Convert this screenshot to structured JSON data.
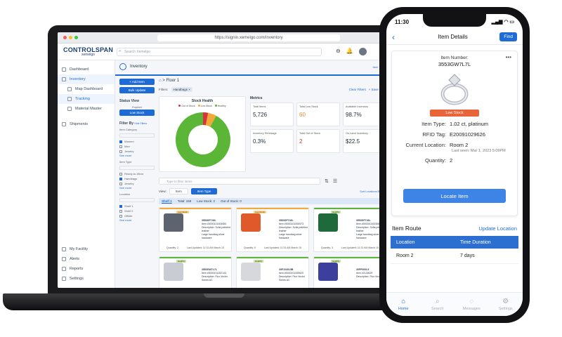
{
  "browser": {
    "url": "https://signin.xemelgo.com/inventory"
  },
  "app": {
    "logo_main": "CONTROLSPAN",
    "logo_sub": "xemelgo",
    "search_placeholder": "Search Xemelgo",
    "page_title": "Inventory",
    "item_type_link": "Item Type"
  },
  "sidebar": {
    "items": [
      {
        "label": "Dashboard"
      },
      {
        "label": "Inventory"
      },
      {
        "label": "Map Dashboard"
      },
      {
        "label": "Tracking"
      },
      {
        "label": "Material Master"
      },
      {
        "label": "Shipments"
      }
    ],
    "bottom": [
      {
        "label": "My Facility"
      },
      {
        "label": "Alerts"
      },
      {
        "label": "Reports"
      },
      {
        "label": "Settings"
      }
    ]
  },
  "filters_col": {
    "add_item": "+ Add Item",
    "bulk_update": "Bulk Update",
    "status_view": "Status View",
    "expired": "Expired",
    "low_stock": "Low Stock",
    "filter_by": "Filter By",
    "hide_filters": "Hide Filters",
    "item_category": "Item Category",
    "categories": [
      "Women",
      "Men",
      "Jewelry"
    ],
    "see_more": "See more",
    "item_type": "Item Type",
    "types": [
      "Ready-to-Wear",
      "Handbags",
      "Jewelry"
    ],
    "location": "Location",
    "locations": [
      "Shelf 1",
      "Shelf 2",
      "Offsite"
    ]
  },
  "content": {
    "breadcrumb": "> Floor 1",
    "filters_label": "Filters:",
    "filter_chip": "Handbags ×",
    "clear_filters": "Clear Filters",
    "save_filter": "+ Save Filter",
    "stock_health_title": "Stock Health",
    "legend": [
      "Out of Stock",
      "Low Stock",
      "Healthy"
    ],
    "metrics_title": "Metrics",
    "metrics": [
      {
        "label": "Total Items",
        "value": "5,726"
      },
      {
        "label": "Total Low Stock",
        "value": "60"
      },
      {
        "label": "Available Inventory",
        "value": "98.7%"
      },
      {
        "label": "Inventory Shrinkage",
        "value": "0.3%"
      },
      {
        "label": "Total Out of Stock",
        "value": "2"
      },
      {
        "label": "On-hand Inventory",
        "value": "$22.5"
      }
    ],
    "type_filter": "Type to filter items",
    "view_label": "View:",
    "view_item": "Item",
    "view_item_type": "Item Type",
    "sort_label": "Sort Locations By: A-Z",
    "shelf": {
      "name": "Shelf 1",
      "total": "Total: 159",
      "low": "Low Stock: 2",
      "out": "Out of Stock: 0"
    },
    "cards": [
      {
        "badge": "Low Stock",
        "id": "3553GF743L",
        "serial": "Item #0000101003083",
        "desc": "Description: Sofia pebbled leather",
        "desc2": "Large handbag silver hardware",
        "qty": "Quantity: 2",
        "updated": "Last Updated: 11:31 AM March 15"
      },
      {
        "badge": "Low Stock",
        "id": "3553GF743L",
        "serial": "Item #0000101006973",
        "desc": "Description: Sofia pebbled leather",
        "desc2": "Large handbag silver hardware",
        "qty": "Quantity: 5",
        "updated": "Last Updated: 11:31 AM March 15"
      },
      {
        "badge": "Healthy",
        "id": "3553GF743L",
        "serial": "Item #0000101003080",
        "desc": "Description: Sofia pebbled leather",
        "desc2": "Large handbag silver hardware",
        "qty": "Quantity: 3",
        "updated": "Last Updated: 11:31 AM March 15"
      },
      {
        "badge": "Healthy",
        "id": "3553GW7L7L",
        "serial": "Item #0000101252143",
        "desc": "Description: Flux Vector Series AC",
        "desc2": "",
        "qty": "",
        "updated": ""
      },
      {
        "badge": "Healthy",
        "id": "30F1040L5B",
        "serial": "Item #0000101435620",
        "desc": "Description: Flux Vector Series AC",
        "desc2": "",
        "qty": "",
        "updated": ""
      },
      {
        "badge": "Healthy",
        "id": "30FP000L5",
        "serial": "Item #2134629",
        "desc": "Description: Flux Vector",
        "desc2": "",
        "qty": "",
        "updated": ""
      }
    ]
  },
  "chart_data": {
    "type": "pie",
    "title": "Stock Health",
    "categories": [
      "Out of Stock",
      "Low Stock",
      "Healthy"
    ],
    "values": [
      3,
      5,
      92
    ]
  },
  "phone": {
    "time": "11:30",
    "title": "Item Details",
    "find": "Find",
    "item_number_label": "Item Number:",
    "item_number": "3553GW7L7L",
    "status": "Low Stock",
    "rows": [
      {
        "k": "Item Type:",
        "v": "1.02 ct, platinum"
      },
      {
        "k": "RFID Tag:",
        "v": "E20091029626"
      },
      {
        "k": "Current Location:",
        "v": "Room 2"
      }
    ],
    "last_seen": "Last seen: Mar 1, 2023 5:09PM",
    "quantity_label": "Quantity:",
    "quantity": "2",
    "locate": "Locate Item",
    "route_title": "Item Route",
    "update_location": "Update Location",
    "table_head": [
      "Location",
      "Time Duration"
    ],
    "table_rows": [
      [
        "Room 2",
        "7 days"
      ]
    ],
    "tabs": [
      "Home",
      "Search",
      "Messages",
      "Settings"
    ]
  },
  "colors": {
    "accent": "#1f6bd6",
    "low_stock": "#e8643a",
    "healthy": "#5bb537"
  }
}
